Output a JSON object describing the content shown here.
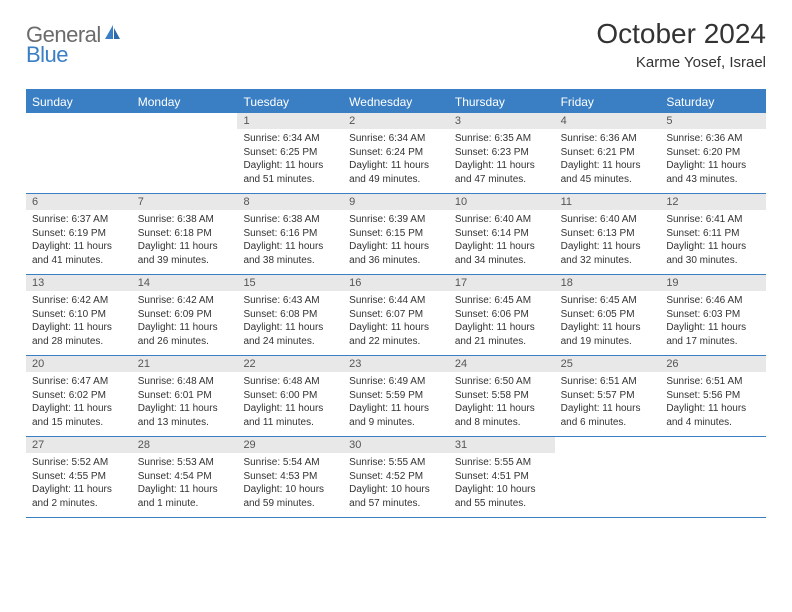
{
  "brand": {
    "text_general": "General",
    "text_blue": "Blue",
    "icon_color": "#3a7fc4"
  },
  "header": {
    "month_title": "October 2024",
    "location": "Karme Yosef, Israel"
  },
  "colors": {
    "accent": "#3a7fc4",
    "day_num_bg": "#e8e8e8",
    "text": "#333333",
    "logo_gray": "#6b6b6b",
    "white": "#ffffff"
  },
  "calendar": {
    "weekdays": [
      "Sunday",
      "Monday",
      "Tuesday",
      "Wednesday",
      "Thursday",
      "Friday",
      "Saturday"
    ],
    "weeks": [
      [
        {
          "empty": true
        },
        {
          "empty": true
        },
        {
          "num": "1",
          "sunrise": "Sunrise: 6:34 AM",
          "sunset": "Sunset: 6:25 PM",
          "daylight": "Daylight: 11 hours and 51 minutes."
        },
        {
          "num": "2",
          "sunrise": "Sunrise: 6:34 AM",
          "sunset": "Sunset: 6:24 PM",
          "daylight": "Daylight: 11 hours and 49 minutes."
        },
        {
          "num": "3",
          "sunrise": "Sunrise: 6:35 AM",
          "sunset": "Sunset: 6:23 PM",
          "daylight": "Daylight: 11 hours and 47 minutes."
        },
        {
          "num": "4",
          "sunrise": "Sunrise: 6:36 AM",
          "sunset": "Sunset: 6:21 PM",
          "daylight": "Daylight: 11 hours and 45 minutes."
        },
        {
          "num": "5",
          "sunrise": "Sunrise: 6:36 AM",
          "sunset": "Sunset: 6:20 PM",
          "daylight": "Daylight: 11 hours and 43 minutes."
        }
      ],
      [
        {
          "num": "6",
          "sunrise": "Sunrise: 6:37 AM",
          "sunset": "Sunset: 6:19 PM",
          "daylight": "Daylight: 11 hours and 41 minutes."
        },
        {
          "num": "7",
          "sunrise": "Sunrise: 6:38 AM",
          "sunset": "Sunset: 6:18 PM",
          "daylight": "Daylight: 11 hours and 39 minutes."
        },
        {
          "num": "8",
          "sunrise": "Sunrise: 6:38 AM",
          "sunset": "Sunset: 6:16 PM",
          "daylight": "Daylight: 11 hours and 38 minutes."
        },
        {
          "num": "9",
          "sunrise": "Sunrise: 6:39 AM",
          "sunset": "Sunset: 6:15 PM",
          "daylight": "Daylight: 11 hours and 36 minutes."
        },
        {
          "num": "10",
          "sunrise": "Sunrise: 6:40 AM",
          "sunset": "Sunset: 6:14 PM",
          "daylight": "Daylight: 11 hours and 34 minutes."
        },
        {
          "num": "11",
          "sunrise": "Sunrise: 6:40 AM",
          "sunset": "Sunset: 6:13 PM",
          "daylight": "Daylight: 11 hours and 32 minutes."
        },
        {
          "num": "12",
          "sunrise": "Sunrise: 6:41 AM",
          "sunset": "Sunset: 6:11 PM",
          "daylight": "Daylight: 11 hours and 30 minutes."
        }
      ],
      [
        {
          "num": "13",
          "sunrise": "Sunrise: 6:42 AM",
          "sunset": "Sunset: 6:10 PM",
          "daylight": "Daylight: 11 hours and 28 minutes."
        },
        {
          "num": "14",
          "sunrise": "Sunrise: 6:42 AM",
          "sunset": "Sunset: 6:09 PM",
          "daylight": "Daylight: 11 hours and 26 minutes."
        },
        {
          "num": "15",
          "sunrise": "Sunrise: 6:43 AM",
          "sunset": "Sunset: 6:08 PM",
          "daylight": "Daylight: 11 hours and 24 minutes."
        },
        {
          "num": "16",
          "sunrise": "Sunrise: 6:44 AM",
          "sunset": "Sunset: 6:07 PM",
          "daylight": "Daylight: 11 hours and 22 minutes."
        },
        {
          "num": "17",
          "sunrise": "Sunrise: 6:45 AM",
          "sunset": "Sunset: 6:06 PM",
          "daylight": "Daylight: 11 hours and 21 minutes."
        },
        {
          "num": "18",
          "sunrise": "Sunrise: 6:45 AM",
          "sunset": "Sunset: 6:05 PM",
          "daylight": "Daylight: 11 hours and 19 minutes."
        },
        {
          "num": "19",
          "sunrise": "Sunrise: 6:46 AM",
          "sunset": "Sunset: 6:03 PM",
          "daylight": "Daylight: 11 hours and 17 minutes."
        }
      ],
      [
        {
          "num": "20",
          "sunrise": "Sunrise: 6:47 AM",
          "sunset": "Sunset: 6:02 PM",
          "daylight": "Daylight: 11 hours and 15 minutes."
        },
        {
          "num": "21",
          "sunrise": "Sunrise: 6:48 AM",
          "sunset": "Sunset: 6:01 PM",
          "daylight": "Daylight: 11 hours and 13 minutes."
        },
        {
          "num": "22",
          "sunrise": "Sunrise: 6:48 AM",
          "sunset": "Sunset: 6:00 PM",
          "daylight": "Daylight: 11 hours and 11 minutes."
        },
        {
          "num": "23",
          "sunrise": "Sunrise: 6:49 AM",
          "sunset": "Sunset: 5:59 PM",
          "daylight": "Daylight: 11 hours and 9 minutes."
        },
        {
          "num": "24",
          "sunrise": "Sunrise: 6:50 AM",
          "sunset": "Sunset: 5:58 PM",
          "daylight": "Daylight: 11 hours and 8 minutes."
        },
        {
          "num": "25",
          "sunrise": "Sunrise: 6:51 AM",
          "sunset": "Sunset: 5:57 PM",
          "daylight": "Daylight: 11 hours and 6 minutes."
        },
        {
          "num": "26",
          "sunrise": "Sunrise: 6:51 AM",
          "sunset": "Sunset: 5:56 PM",
          "daylight": "Daylight: 11 hours and 4 minutes."
        }
      ],
      [
        {
          "num": "27",
          "sunrise": "Sunrise: 5:52 AM",
          "sunset": "Sunset: 4:55 PM",
          "daylight": "Daylight: 11 hours and 2 minutes."
        },
        {
          "num": "28",
          "sunrise": "Sunrise: 5:53 AM",
          "sunset": "Sunset: 4:54 PM",
          "daylight": "Daylight: 11 hours and 1 minute."
        },
        {
          "num": "29",
          "sunrise": "Sunrise: 5:54 AM",
          "sunset": "Sunset: 4:53 PM",
          "daylight": "Daylight: 10 hours and 59 minutes."
        },
        {
          "num": "30",
          "sunrise": "Sunrise: 5:55 AM",
          "sunset": "Sunset: 4:52 PM",
          "daylight": "Daylight: 10 hours and 57 minutes."
        },
        {
          "num": "31",
          "sunrise": "Sunrise: 5:55 AM",
          "sunset": "Sunset: 4:51 PM",
          "daylight": "Daylight: 10 hours and 55 minutes."
        },
        {
          "empty": true
        },
        {
          "empty": true
        }
      ]
    ]
  }
}
